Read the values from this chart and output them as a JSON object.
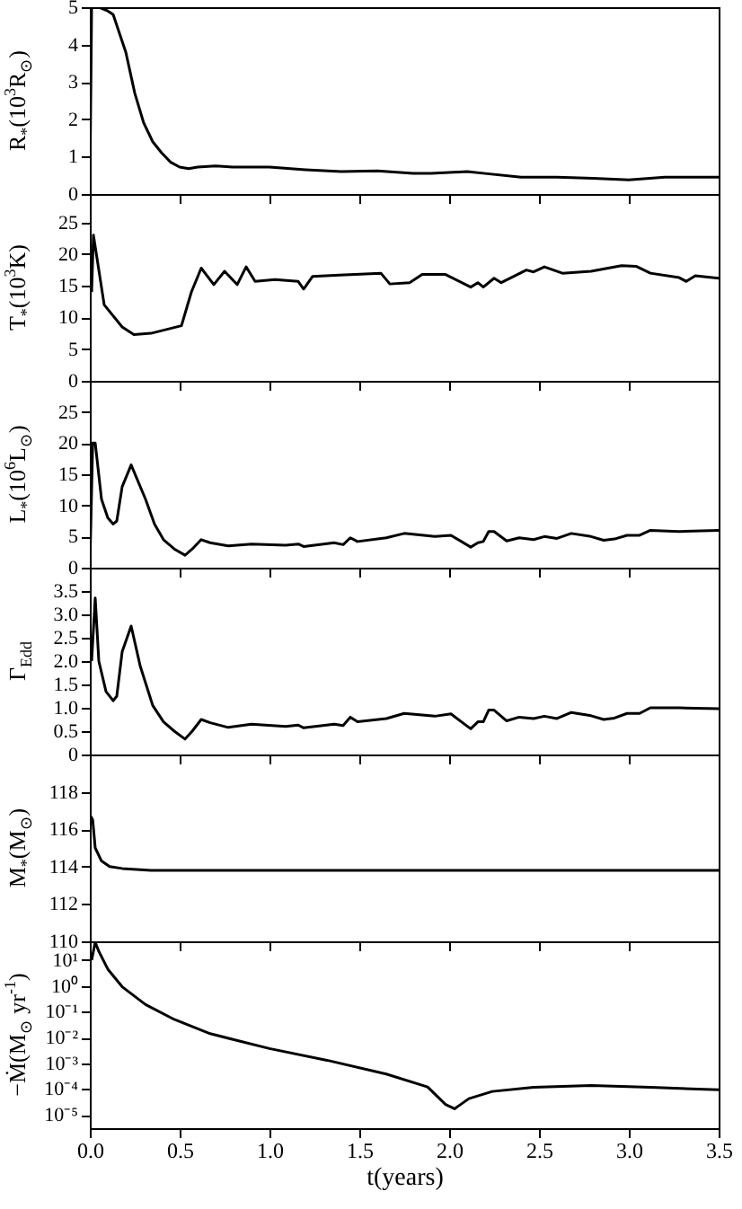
{
  "chart_data": [
    {
      "type": "line",
      "color": "#000000",
      "ylabel": "R$_{*}$(10$^{3}$R$_{⊙}$)",
      "tick_labels": "y",
      "xlim": [
        0,
        3.5
      ],
      "ylim": [
        0,
        5
      ],
      "yticks": [
        0,
        1,
        2,
        3,
        4,
        5
      ],
      "x": [
        0,
        0.01,
        0.05,
        0.1,
        0.13,
        0.2,
        0.25,
        0.3,
        0.35,
        0.4,
        0.45,
        0.5,
        0.55,
        0.6,
        0.7,
        0.8,
        1.0,
        1.2,
        1.4,
        1.6,
        1.8,
        1.9,
        2.1,
        2.2,
        2.4,
        2.6,
        2.8,
        3.0,
        3.2,
        3.5
      ],
      "values": [
        0,
        5,
        5,
        4.9,
        4.8,
        3.8,
        2.7,
        1.9,
        1.4,
        1.1,
        0.85,
        0.72,
        0.68,
        0.72,
        0.75,
        0.72,
        0.72,
        0.65,
        0.6,
        0.62,
        0.55,
        0.55,
        0.6,
        0.55,
        0.45,
        0.45,
        0.42,
        0.38,
        0.45,
        0.45
      ]
    },
    {
      "type": "line",
      "color": "#000000",
      "ylabel": "T$_{*}$(10$^{3}$K)",
      "tick_labels": "y",
      "xlim": [
        0,
        3.5
      ],
      "ylim": [
        0,
        29.5
      ],
      "yticks": [
        0,
        5,
        10,
        15,
        20,
        25
      ],
      "x": [
        0.01,
        0.02,
        0.08,
        0.18,
        0.245,
        0.34,
        0.51,
        0.565,
        0.62,
        0.69,
        0.75,
        0.82,
        0.87,
        0.92,
        1.03,
        1.16,
        1.19,
        1.24,
        1.39,
        1.62,
        1.67,
        1.78,
        1.85,
        1.98,
        2.12,
        2.16,
        2.19,
        2.25,
        2.29,
        2.43,
        2.47,
        2.53,
        2.63,
        2.79,
        2.96,
        3.04,
        3.12,
        3.28,
        3.32,
        3.37,
        3.5
      ],
      "values": [
        14,
        23,
        12,
        8.5,
        7.3,
        7.5,
        8.7,
        14,
        17.8,
        15.2,
        17.3,
        15.2,
        18,
        15.7,
        16,
        15.7,
        14.5,
        16.5,
        16.7,
        17,
        15.3,
        15.5,
        16.8,
        16.8,
        14.8,
        15.5,
        14.8,
        16.2,
        15.5,
        17.5,
        17.2,
        18,
        17,
        17.3,
        18.2,
        18.1,
        17,
        16.3,
        15.7,
        16.6,
        16.2
      ]
    },
    {
      "type": "line",
      "color": "#000000",
      "ylabel": "L$_{*}$(10$^{6}$L$_{⊙}$)",
      "tick_labels": "y",
      "xlim": [
        0,
        3.5
      ],
      "ylim": [
        0,
        30
      ],
      "yticks": [
        0,
        5,
        10,
        15,
        20,
        25
      ],
      "x": [
        0,
        0.016,
        0.03,
        0.065,
        0.1,
        0.13,
        0.15,
        0.18,
        0.23,
        0.31,
        0.36,
        0.41,
        0.47,
        0.53,
        0.57,
        0.62,
        0.67,
        0.77,
        0.9,
        1.09,
        1.16,
        1.19,
        1.36,
        1.41,
        1.45,
        1.49,
        1.65,
        1.75,
        1.92,
        2.01,
        2.12,
        2.16,
        2.19,
        2.22,
        2.25,
        2.32,
        2.39,
        2.47,
        2.53,
        2.6,
        2.68,
        2.79,
        2.86,
        2.92,
        2.99,
        3.06,
        3.12,
        3.28,
        3.5
      ],
      "values": [
        0,
        20,
        20,
        11,
        8,
        7,
        7.5,
        13,
        16.5,
        11,
        7,
        4.5,
        3,
        2,
        3,
        4.5,
        4,
        3.5,
        3.8,
        3.6,
        3.8,
        3.4,
        4,
        3.7,
        4.8,
        4.2,
        4.8,
        5.5,
        5,
        5.2,
        3.3,
        4,
        4.2,
        5.8,
        5.8,
        4.3,
        4.8,
        4.5,
        5,
        4.7,
        5.5,
        5,
        4.4,
        4.6,
        5.2,
        5.2,
        6,
        5.8,
        6
      ]
    },
    {
      "type": "line",
      "color": "#000000",
      "ylabel": "Γ$_{Edd}$",
      "tick_labels": "y",
      "xlim": [
        0,
        3.5
      ],
      "ylim": [
        0,
        4
      ],
      "yticks": [
        0,
        0.5,
        {
          "value": 1,
          "label": "1.0"
        },
        1.5,
        {
          "value": 2,
          "label": "2.0"
        },
        2.5,
        {
          "value": 3,
          "label": "3.0"
        },
        3.5
      ],
      "x": [
        0.01,
        0.03,
        0.05,
        0.09,
        0.13,
        0.15,
        0.18,
        0.23,
        0.28,
        0.35,
        0.41,
        0.47,
        0.53,
        0.57,
        0.62,
        0.67,
        0.77,
        0.9,
        1.09,
        1.16,
        1.19,
        1.36,
        1.41,
        1.45,
        1.49,
        1.65,
        1.75,
        1.92,
        2.01,
        2.12,
        2.16,
        2.19,
        2.22,
        2.25,
        2.32,
        2.39,
        2.47,
        2.53,
        2.6,
        2.68,
        2.79,
        2.86,
        2.92,
        2.99,
        3.06,
        3.12,
        3.28,
        3.5
      ],
      "values": [
        2.0,
        3.35,
        2.0,
        1.35,
        1.15,
        1.25,
        2.2,
        2.75,
        1.9,
        1.05,
        0.7,
        0.5,
        0.33,
        0.5,
        0.75,
        0.68,
        0.58,
        0.65,
        0.6,
        0.63,
        0.57,
        0.65,
        0.62,
        0.8,
        0.7,
        0.77,
        0.88,
        0.82,
        0.87,
        0.55,
        0.7,
        0.7,
        0.95,
        0.95,
        0.72,
        0.8,
        0.77,
        0.82,
        0.77,
        0.9,
        0.83,
        0.75,
        0.78,
        0.88,
        0.88,
        1.0,
        1.0,
        0.98
      ]
    },
    {
      "type": "line",
      "color": "#000000",
      "ylabel": "M$_{*}$(M$_{⊙}$)",
      "tick_labels": "y",
      "xlim": [
        0,
        3.5
      ],
      "ylim": [
        110,
        120
      ],
      "yticks": [
        110,
        112,
        114,
        116,
        118
      ],
      "x": [
        0.005,
        0.016,
        0.03,
        0.065,
        0.11,
        0.18,
        0.34,
        3.5
      ],
      "values": [
        116.7,
        116.5,
        115,
        114.3,
        114,
        113.9,
        113.8,
        113.8
      ]
    },
    {
      "type": "line",
      "color": "#000000",
      "log": true,
      "xlabel": "t(years)",
      "ylabel": "−Ṁ(M$_{⊙}$ yr$^{-1}$)",
      "xlim": [
        0,
        3.5
      ],
      "xticks": [
        {
          "value": 0,
          "label": "0.0"
        },
        0.5,
        {
          "value": 1,
          "label": "1.0"
        },
        1.5,
        {
          "value": 2,
          "label": "2.0"
        },
        2.5,
        {
          "value": 3,
          "label": "3.0"
        },
        3.5
      ],
      "ylim": [
        3e-06,
        54
      ],
      "yticks": [
        {
          "value": 1e-05,
          "label": "10⁻⁵"
        },
        {
          "value": 0.0001,
          "label": "10⁻⁴"
        },
        {
          "value": 0.001,
          "label": "10⁻³"
        },
        {
          "value": 0.01,
          "label": "10⁻²"
        },
        {
          "value": 0.1,
          "label": "10⁻¹"
        },
        {
          "value": 1,
          "label": "10⁰"
        },
        {
          "value": 10,
          "label": "10¹"
        }
      ],
      "x": [
        0.01,
        0.03,
        0.05,
        0.1,
        0.18,
        0.31,
        0.47,
        0.67,
        1.0,
        1.32,
        1.65,
        1.88,
        1.98,
        2.03,
        2.11,
        2.24,
        2.47,
        2.79,
        3.12,
        3.5
      ],
      "values": [
        10,
        50,
        22,
        4.5,
        0.93,
        0.19,
        0.05,
        0.014,
        0.0037,
        0.0013,
        0.00038,
        0.00012,
        2.5e-05,
        1.7e-05,
        4.2e-05,
        8e-05,
        0.000115,
        0.000135,
        0.000115,
        9.3e-05
      ]
    }
  ]
}
